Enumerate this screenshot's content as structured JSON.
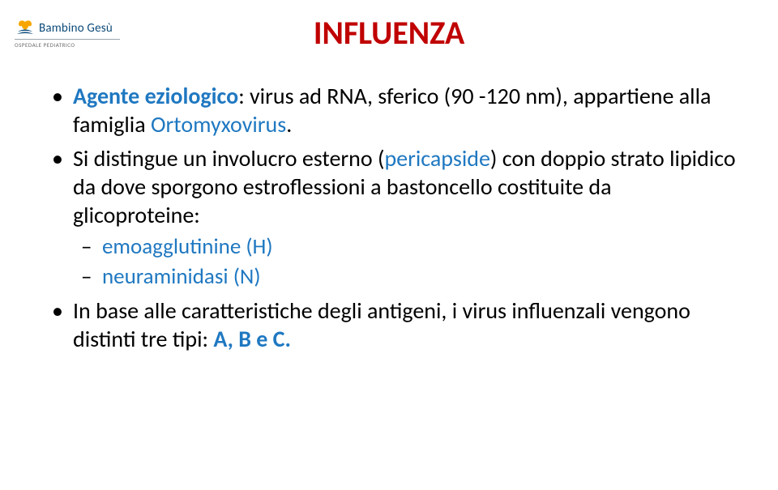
{
  "logo": {
    "name": "Bambino Gesù",
    "subtitle": "OSPEDALE PEDIATRICO",
    "brand_color": "#0b4a7a",
    "accent_color": "#f7a600"
  },
  "title": {
    "text": "INFLUENZA",
    "color": "#c00000"
  },
  "bullets": [
    {
      "runs": [
        {
          "text": "Agente eziologico",
          "color": "#1f78c1",
          "bold": true
        },
        {
          "text": ": virus ad RNA, sferico (90 -120 nm), appartiene alla famiglia ",
          "color": "#000000",
          "bold": false
        },
        {
          "text": "Ortomyxovirus",
          "color": "#1f78c1",
          "bold": false
        },
        {
          "text": ".",
          "color": "#000000",
          "bold": false
        }
      ]
    },
    {
      "runs": [
        {
          "text": "Si distingue un involucro esterno (",
          "color": "#000000",
          "bold": false
        },
        {
          "text": "pericapside",
          "color": "#1f78c1",
          "bold": false
        },
        {
          "text": ") con doppio strato lipidico da dove sporgono estroflessioni a bastoncello costituite da glicoproteine:",
          "color": "#000000",
          "bold": false
        }
      ],
      "sub": [
        {
          "runs": [
            {
              "text": "emoagglutinine (H)",
              "color": "#1f78c1",
              "bold": false
            }
          ]
        },
        {
          "runs": [
            {
              "text": "neuraminidasi (N)",
              "color": "#1f78c1",
              "bold": false
            }
          ]
        }
      ]
    },
    {
      "runs": [
        {
          "text": "In base alle caratteristiche degli antigeni, i virus influenzali vengono distinti tre tipi: ",
          "color": "#000000",
          "bold": false
        },
        {
          "text": "A, B e C.",
          "color": "#1f78c1",
          "bold": true
        }
      ]
    }
  ]
}
